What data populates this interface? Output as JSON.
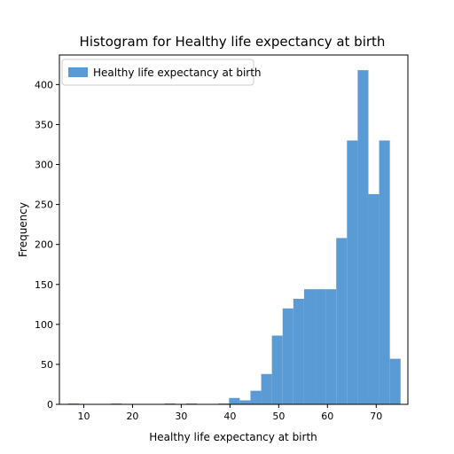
{
  "chart_data": {
    "type": "bar",
    "title": "Histogram for Healthy life expectancy at birth",
    "xlabel": "Healthy life expectancy at birth",
    "ylabel": "Frequency",
    "xlim": [
      5,
      76.5
    ],
    "ylim": [
      0,
      437
    ],
    "xticks": [
      10,
      20,
      30,
      40,
      50,
      60,
      70
    ],
    "yticks": [
      0,
      50,
      100,
      150,
      200,
      250,
      300,
      350,
      400
    ],
    "legend": {
      "position": "top-left",
      "entries": [
        "Healthy life expectancy at birth"
      ]
    },
    "grid": false,
    "bin_width": 2.2,
    "series": [
      {
        "name": "Healthy life expectancy at birth",
        "color": "#5b9bd5",
        "bins": [
          {
            "x0": 6.8,
            "x1": 9.0,
            "count": 1
          },
          {
            "x0": 9.0,
            "x1": 11.2,
            "count": 0
          },
          {
            "x0": 11.2,
            "x1": 13.4,
            "count": 0
          },
          {
            "x0": 13.4,
            "x1": 15.6,
            "count": 0
          },
          {
            "x0": 15.6,
            "x1": 17.8,
            "count": 1
          },
          {
            "x0": 17.8,
            "x1": 20.0,
            "count": 0
          },
          {
            "x0": 20.0,
            "x1": 22.2,
            "count": 0
          },
          {
            "x0": 22.2,
            "x1": 24.4,
            "count": 0
          },
          {
            "x0": 24.4,
            "x1": 26.6,
            "count": 0
          },
          {
            "x0": 26.6,
            "x1": 28.8,
            "count": 1
          },
          {
            "x0": 28.8,
            "x1": 31.0,
            "count": 0
          },
          {
            "x0": 31.0,
            "x1": 33.2,
            "count": 1
          },
          {
            "x0": 33.2,
            "x1": 35.4,
            "count": 0
          },
          {
            "x0": 35.4,
            "x1": 37.6,
            "count": 0
          },
          {
            "x0": 37.6,
            "x1": 39.8,
            "count": 1
          },
          {
            "x0": 39.8,
            "x1": 42.0,
            "count": 8
          },
          {
            "x0": 42.0,
            "x1": 44.2,
            "count": 5
          },
          {
            "x0": 44.2,
            "x1": 46.4,
            "count": 17
          },
          {
            "x0": 46.4,
            "x1": 48.6,
            "count": 38
          },
          {
            "x0": 48.6,
            "x1": 50.8,
            "count": 86
          },
          {
            "x0": 50.8,
            "x1": 53.0,
            "count": 120
          },
          {
            "x0": 53.0,
            "x1": 55.2,
            "count": 132
          },
          {
            "x0": 55.2,
            "x1": 57.4,
            "count": 144
          },
          {
            "x0": 57.4,
            "x1": 59.6,
            "count": 144
          },
          {
            "x0": 59.6,
            "x1": 61.8,
            "count": 144
          },
          {
            "x0": 61.8,
            "x1": 64.0,
            "count": 208
          },
          {
            "x0": 64.0,
            "x1": 66.2,
            "count": 330
          },
          {
            "x0": 66.2,
            "x1": 68.4,
            "count": 418
          },
          {
            "x0": 68.4,
            "x1": 70.6,
            "count": 263
          },
          {
            "x0": 70.6,
            "x1": 72.8,
            "count": 330
          },
          {
            "x0": 72.8,
            "x1": 75.0,
            "count": 57
          }
        ]
      }
    ]
  }
}
